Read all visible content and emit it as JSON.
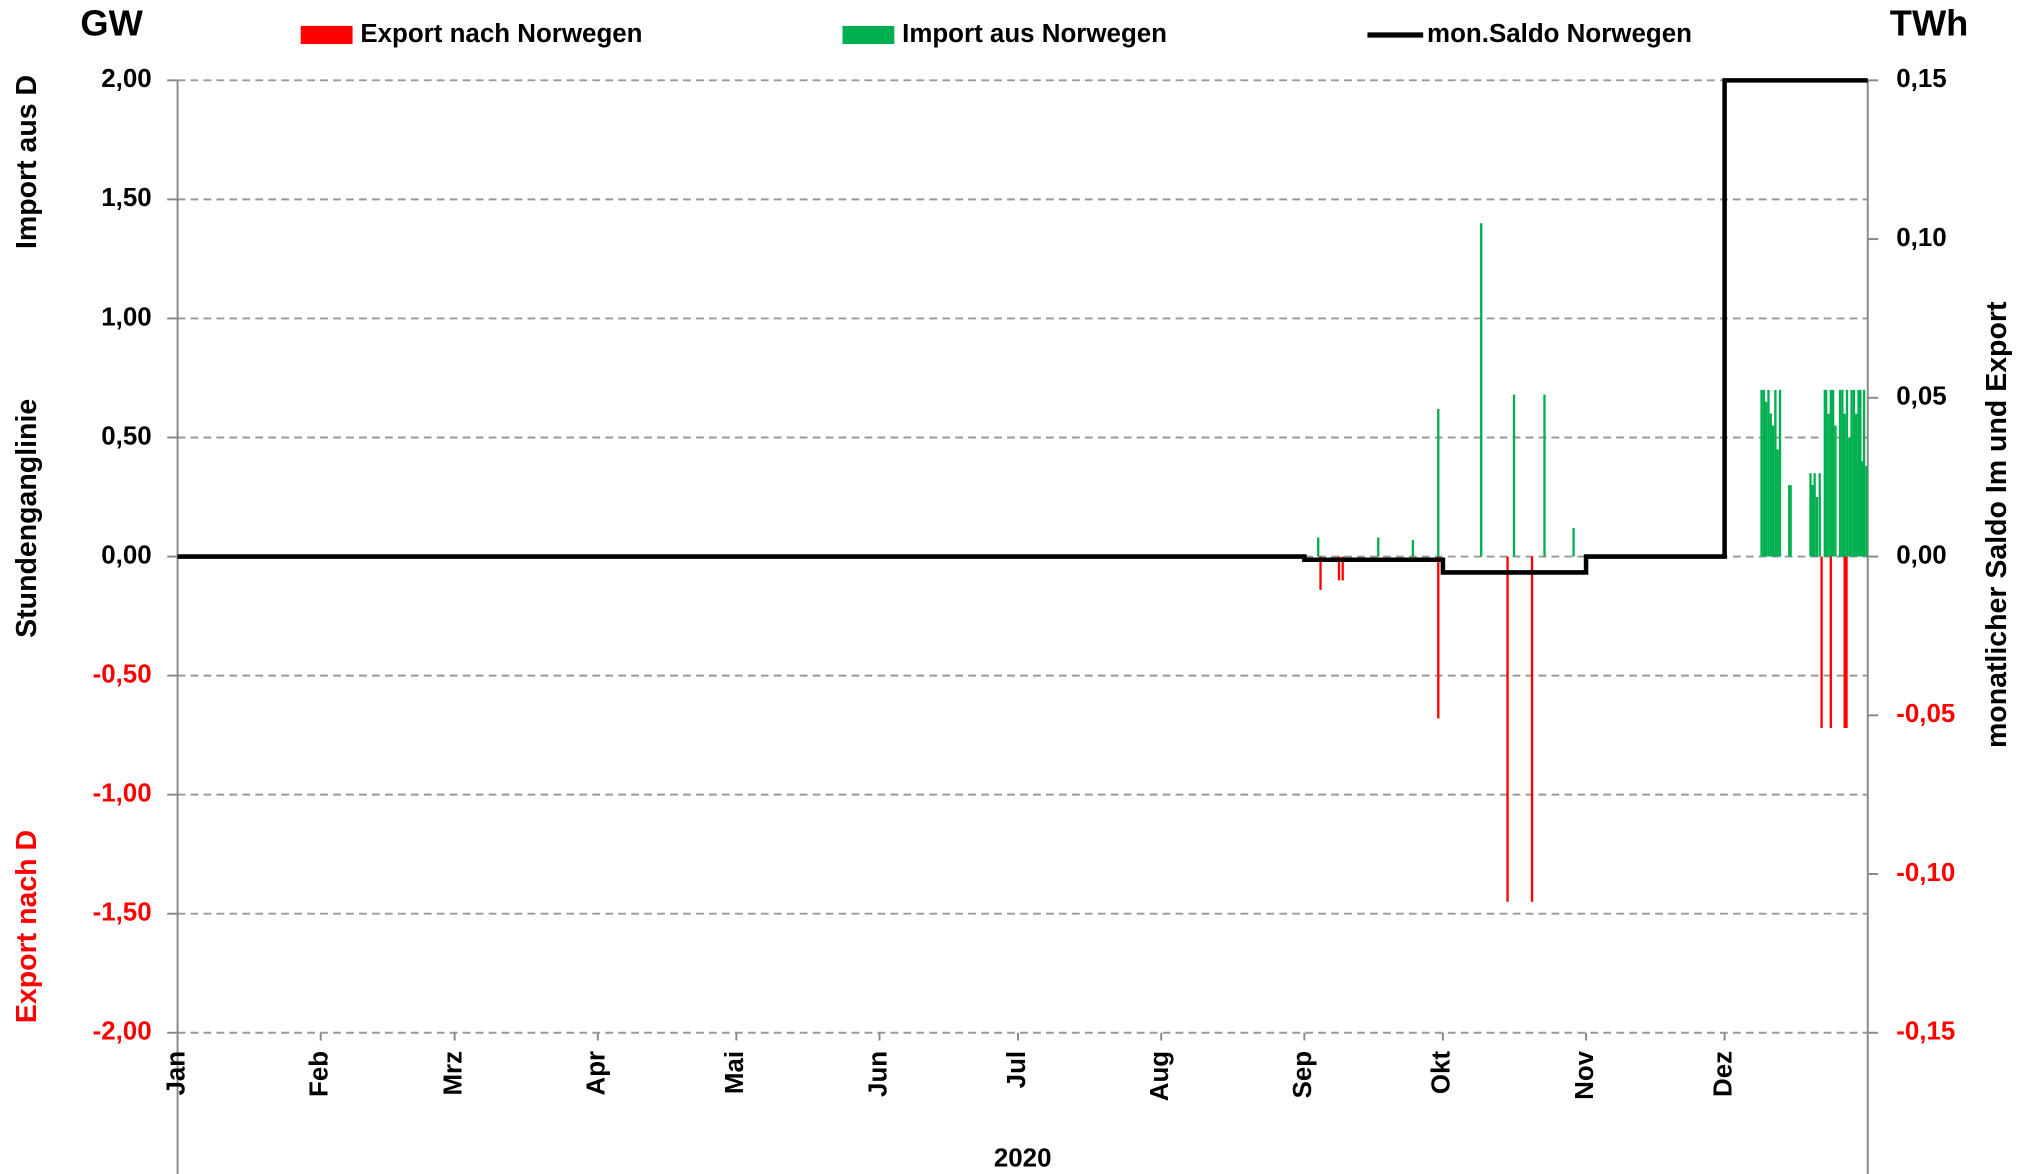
{
  "chart_data": {
    "type": "line",
    "title_left": "GW",
    "title_right": "TWh",
    "ylabel_top": "Import aus D",
    "ylabel_mid": "Stundenganglinie",
    "ylabel_bottom": "Export nach D",
    "y2label": "monatlicher Saldo Im und Export",
    "xlabel": "2020",
    "xlim": [
      0,
      366
    ],
    "xticks": [
      {
        "value": 0,
        "label": "Jan"
      },
      {
        "value": 31,
        "label": "Feb"
      },
      {
        "value": 60,
        "label": "Mrz"
      },
      {
        "value": 91,
        "label": "Apr"
      },
      {
        "value": 121,
        "label": "Mai"
      },
      {
        "value": 152,
        "label": "Jun"
      },
      {
        "value": 182,
        "label": "Jul"
      },
      {
        "value": 213,
        "label": "Aug"
      },
      {
        "value": 244,
        "label": "Sep"
      },
      {
        "value": 274,
        "label": "Okt"
      },
      {
        "value": 305,
        "label": "Nov"
      },
      {
        "value": 335,
        "label": "Dez"
      }
    ],
    "ylim": [
      -2,
      2
    ],
    "yticks": [
      {
        "value": 2,
        "label": "2,00"
      },
      {
        "value": 1.5,
        "label": "1,50"
      },
      {
        "value": 1,
        "label": "1,00"
      },
      {
        "value": 0.5,
        "label": "0,50"
      },
      {
        "value": 0,
        "label": "0,00"
      },
      {
        "value": -0.5,
        "label": "-0,50"
      },
      {
        "value": -1,
        "label": "-1,00"
      },
      {
        "value": -1.5,
        "label": "-1,50"
      },
      {
        "value": -2,
        "label": "-2,00"
      }
    ],
    "y2lim": [
      -0.15,
      0.15
    ],
    "y2ticks": [
      {
        "value": 0.15,
        "label": "0,15"
      },
      {
        "value": 0.1,
        "label": "0,10"
      },
      {
        "value": 0.05,
        "label": "0,05"
      },
      {
        "value": 0,
        "label": "0,00"
      },
      {
        "value": -0.05,
        "label": "-0,05"
      },
      {
        "value": -0.1,
        "label": "-0,10"
      },
      {
        "value": -0.15,
        "label": "-0,15"
      }
    ],
    "grid": true,
    "series": [
      {
        "name": "Export nach Norwegen",
        "color": "#ff0000",
        "kind": "spikes",
        "x": [
          247.5,
          251.5,
          252.3,
          273,
          288,
          293.3,
          356,
          358,
          361,
          361.2,
          361.4
        ],
        "values": [
          -0.14,
          -0.1,
          -0.1,
          -0.68,
          -1.45,
          -1.45,
          -0.72,
          -0.72,
          -0.72,
          -0.72,
          -0.72
        ]
      },
      {
        "name": "Import aus Norwegen",
        "color": "#00b050",
        "kind": "spikes",
        "x": [
          247,
          260,
          267.5,
          273,
          282.3,
          289.4,
          296,
          302.3,
          343,
          343.5,
          344,
          344.5,
          345,
          345.5,
          346,
          346.5,
          347,
          349,
          349.3,
          353.6,
          354,
          354.5,
          355,
          355.6,
          356.7,
          357,
          357.5,
          358,
          358.5,
          359,
          360,
          360.5,
          361,
          361.5,
          362,
          362.5,
          363,
          363.5,
          364,
          364.4,
          364.8,
          365.2,
          365.7
        ],
        "values": [
          0.08,
          0.08,
          0.07,
          0.62,
          1.4,
          0.68,
          0.68,
          0.12,
          0.7,
          0.7,
          0.65,
          0.7,
          0.6,
          0.55,
          0.7,
          0.45,
          0.7,
          0.3,
          0.3,
          0.35,
          0.3,
          0.35,
          0.25,
          0.35,
          0.7,
          0.7,
          0.6,
          0.7,
          0.7,
          0.55,
          0.7,
          0.7,
          0.6,
          0.7,
          0.5,
          0.7,
          0.7,
          0.6,
          0.7,
          0.7,
          0.4,
          0.7,
          0.38
        ]
      },
      {
        "name": "mon.Saldo Norwegen",
        "color": "#000000",
        "kind": "step",
        "axis": "y2",
        "x": [
          0,
          31,
          60,
          91,
          121,
          152,
          182,
          213,
          244,
          274,
          305,
          335
        ],
        "values": [
          0,
          0,
          0,
          0,
          0,
          0,
          0,
          0,
          -0.001,
          -0.005,
          0,
          0.15
        ]
      }
    ]
  }
}
